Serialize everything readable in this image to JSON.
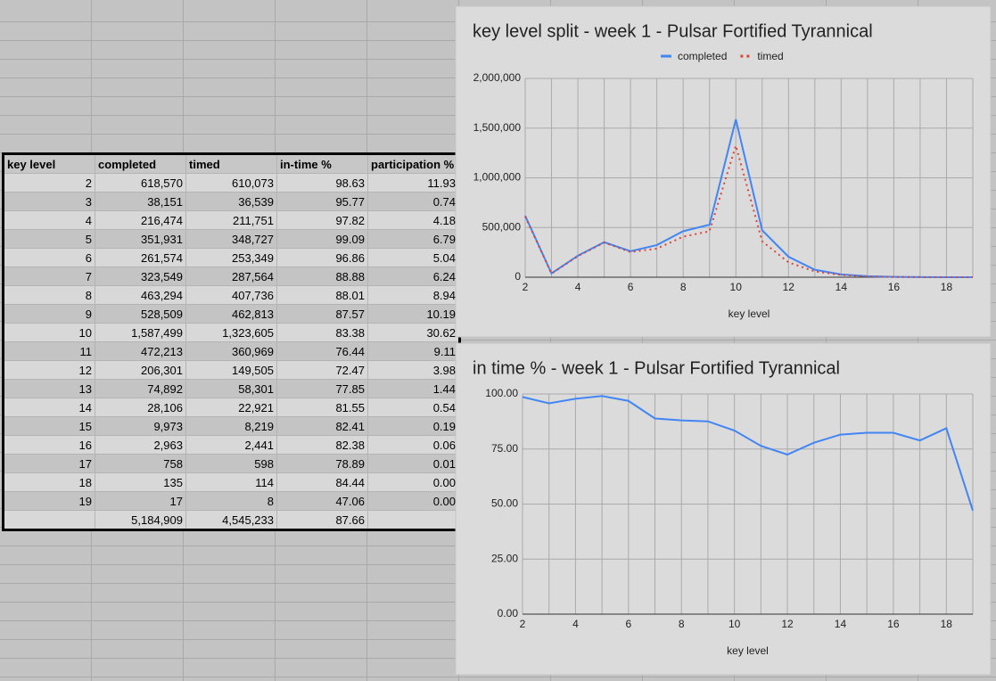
{
  "table": {
    "header": [
      "key level",
      "completed",
      "timed",
      "in-time %",
      "participation %"
    ],
    "rows": [
      [
        "2",
        "618,570",
        "610,073",
        "98.63",
        "11.93"
      ],
      [
        "3",
        "38,151",
        "36,539",
        "95.77",
        "0.74"
      ],
      [
        "4",
        "216,474",
        "211,751",
        "97.82",
        "4.18"
      ],
      [
        "5",
        "351,931",
        "348,727",
        "99.09",
        "6.79"
      ],
      [
        "6",
        "261,574",
        "253,349",
        "96.86",
        "5.04"
      ],
      [
        "7",
        "323,549",
        "287,564",
        "88.88",
        "6.24"
      ],
      [
        "8",
        "463,294",
        "407,736",
        "88.01",
        "8.94"
      ],
      [
        "9",
        "528,509",
        "462,813",
        "87.57",
        "10.19"
      ],
      [
        "10",
        "1,587,499",
        "1,323,605",
        "83.38",
        "30.62"
      ],
      [
        "11",
        "472,213",
        "360,969",
        "76.44",
        "9.11"
      ],
      [
        "12",
        "206,301",
        "149,505",
        "72.47",
        "3.98"
      ],
      [
        "13",
        "74,892",
        "58,301",
        "77.85",
        "1.44"
      ],
      [
        "14",
        "28,106",
        "22,921",
        "81.55",
        "0.54"
      ],
      [
        "15",
        "9,973",
        "8,219",
        "82.41",
        "0.19"
      ],
      [
        "16",
        "2,963",
        "2,441",
        "82.38",
        "0.06"
      ],
      [
        "17",
        "758",
        "598",
        "78.89",
        "0.01"
      ],
      [
        "18",
        "135",
        "114",
        "84.44",
        "0.00"
      ],
      [
        "19",
        "17",
        "8",
        "47.06",
        "0.00"
      ]
    ],
    "total": [
      "5,184,909",
      "4,545,233",
      "87.66"
    ]
  },
  "chart_data": [
    {
      "type": "line",
      "title": "key level split - week 1 - Pulsar Fortified Tyrannical",
      "x_label": "key level",
      "x": [
        2,
        3,
        4,
        5,
        6,
        7,
        8,
        9,
        10,
        11,
        12,
        13,
        14,
        15,
        16,
        17,
        18,
        19
      ],
      "series": [
        {
          "name": "completed",
          "color": "#4285f4",
          "style": "solid",
          "values": [
            618570,
            38151,
            216474,
            351931,
            261574,
            323549,
            463294,
            528509,
            1587499,
            472213,
            206301,
            74892,
            28106,
            9973,
            2963,
            758,
            135,
            17
          ]
        },
        {
          "name": "timed",
          "color": "#db4437",
          "style": "dotted",
          "values": [
            610073,
            36539,
            211751,
            348727,
            253349,
            287564,
            407736,
            462813,
            1323605,
            360969,
            149505,
            58301,
            22921,
            8219,
            2441,
            598,
            114,
            8
          ]
        }
      ],
      "xlim": [
        2,
        19
      ],
      "xticks": [
        2,
        4,
        6,
        8,
        10,
        12,
        14,
        16,
        18
      ],
      "ylim": [
        0,
        2000000
      ],
      "yticks": [
        0,
        {
          "value": 500000,
          "label": "500,000"
        },
        {
          "value": 1000000,
          "label": "1,000,000"
        },
        {
          "value": 1500000,
          "label": "1,500,000"
        },
        {
          "value": 2000000,
          "label": "2,000,000"
        }
      ],
      "grid": true,
      "legend": "top"
    },
    {
      "type": "line",
      "title": "in time % - week 1 - Pulsar Fortified Tyrannical",
      "x_label": "key level",
      "x": [
        2,
        3,
        4,
        5,
        6,
        7,
        8,
        9,
        10,
        11,
        12,
        13,
        14,
        15,
        16,
        17,
        18,
        19
      ],
      "color": "#4285f4",
      "values": [
        98.63,
        95.77,
        97.82,
        99.09,
        96.86,
        88.88,
        88.01,
        87.57,
        83.38,
        76.44,
        72.47,
        77.85,
        81.55,
        82.41,
        82.38,
        78.89,
        84.44,
        47.06
      ],
      "xlim": [
        2,
        19
      ],
      "xticks": [
        2,
        4,
        6,
        8,
        10,
        12,
        14,
        16,
        18
      ],
      "ylim": [
        0,
        100
      ],
      "yticks": [
        {
          "value": 0,
          "label": "0.00"
        },
        {
          "value": 25,
          "label": "25.00"
        },
        {
          "value": 50,
          "label": "50.00"
        },
        {
          "value": 75,
          "label": "75.00"
        },
        {
          "value": 100,
          "label": "100.00"
        }
      ],
      "grid": true
    }
  ]
}
